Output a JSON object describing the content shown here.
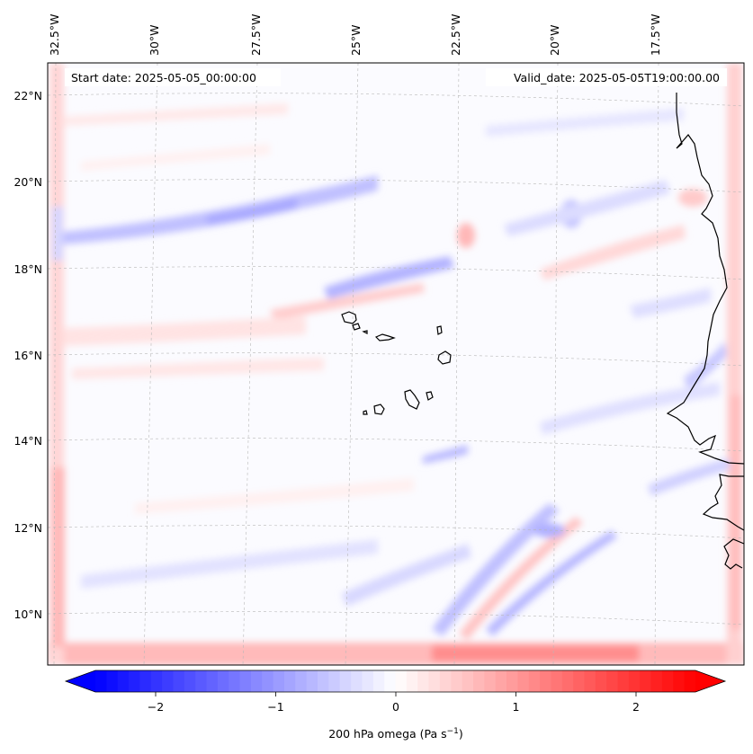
{
  "header": {
    "start_date": "Start date: 2025-05-05_00:00:00",
    "valid_date": "Valid_date: 2025-05-05T19:00:00.00"
  },
  "map": {
    "lon_labels": [
      "32.5°W",
      "30°W",
      "27.5°W",
      "25°W",
      "22.5°W",
      "20°W",
      "17.5°W"
    ],
    "lat_labels": [
      "22°N",
      "20°N",
      "18°N",
      "16°N",
      "14°N",
      "12°N",
      "10°N"
    ],
    "field": "200 hPa omega",
    "field_colors": {
      "negative": "#0000ff",
      "zero": "#ffffff",
      "positive": "#ff0000"
    }
  },
  "colorbar": {
    "range": [
      -2.7,
      2.7
    ],
    "tick_values": [
      -2,
      -1,
      0,
      1,
      2
    ],
    "tick_labels": [
      "−2",
      "−1",
      "0",
      "1",
      "2"
    ],
    "label_prefix": "200 hPa omega (Pa s",
    "label_exponent": "−1",
    "label_suffix": ")"
  }
}
